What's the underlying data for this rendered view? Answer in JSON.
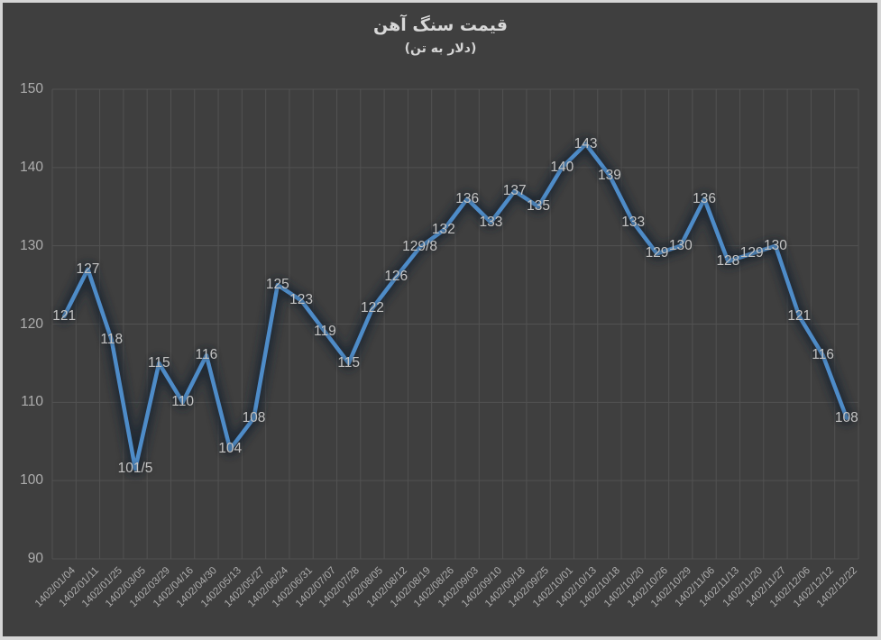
{
  "chart": {
    "background_color": "#3F3F3F",
    "frame_border_color": "#D6D6D6",
    "gridline_color": "#525252",
    "line_color": "#4E8CC8",
    "line_glow_color": "#1C2733",
    "tick_label_color": "#ADADAD",
    "data_label_color": "#C4C4C4",
    "title_color": "#D8D8D8"
  },
  "chart_data": {
    "type": "line",
    "title": "قیمت سنگ آهن",
    "subtitle": "(دلار به تن)",
    "xlabel": "",
    "ylabel": "",
    "ylim": [
      90,
      150
    ],
    "ytick_step": 10,
    "grid": true,
    "legend": "none",
    "categories": [
      "1402/01/04",
      "1402/01/11",
      "1402/01/25",
      "1402/03/05",
      "1402/03/29",
      "1402/04/16",
      "1402/04/30",
      "1402/05/13",
      "1402/05/27",
      "1402/06/24",
      "1402/06/31",
      "1402/07/07",
      "1402/07/28",
      "1402/08/05",
      "1402/08/12",
      "1402/08/19",
      "1402/08/26",
      "1402/09/03",
      "1402/09/10",
      "1402/09/18",
      "1402/09/25",
      "1402/10/01",
      "1402/10/13",
      "1402/10/18",
      "1402/10/20",
      "1402/10/26",
      "1402/10/29",
      "1402/11/06",
      "1402/11/13",
      "1402/11/20",
      "1402/11/27",
      "1402/12/06",
      "1402/12/12",
      "1402/12/22"
    ],
    "values": [
      121,
      127,
      118,
      101.5,
      115,
      110,
      116,
      104,
      108,
      125,
      123,
      119,
      115,
      122,
      126,
      129.8,
      132,
      136,
      133,
      137,
      135,
      140,
      143,
      139,
      133,
      129,
      130,
      136,
      128,
      129,
      130,
      121,
      116,
      108
    ],
    "value_labels": [
      "121",
      "127",
      "118",
      "101/5",
      "115",
      "110",
      "116",
      "104",
      "108",
      "125",
      "123",
      "119",
      "115",
      "122",
      "126",
      "129/8",
      "132",
      "136",
      "133",
      "137",
      "135",
      "140",
      "143",
      "139",
      "133",
      "129",
      "130",
      "136",
      "128",
      "129",
      "130",
      "121",
      "116",
      "108"
    ]
  }
}
